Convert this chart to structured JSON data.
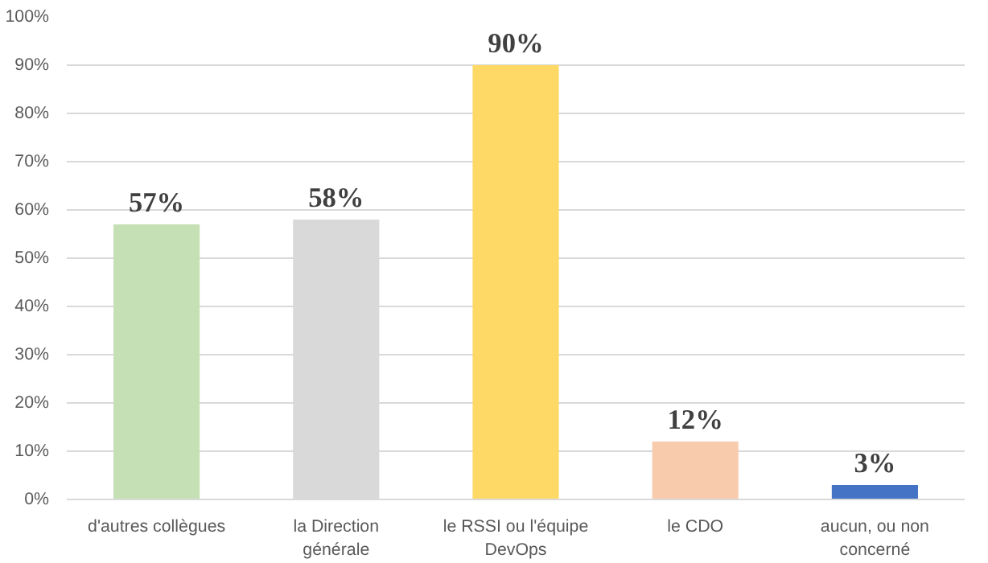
{
  "chart_data": {
    "type": "bar",
    "categories": [
      "d'autres collègues",
      "la Direction générale",
      "le RSSI ou l'équipe DevOps",
      "le CDO",
      "aucun, ou non concerné"
    ],
    "values": [
      57,
      58,
      90,
      12,
      3
    ],
    "colors": [
      "#c5e0b4",
      "#d9d9d9",
      "#ffd966",
      "#f8cbad",
      "#4472c4"
    ],
    "value_labels": [
      "57%",
      "58%",
      "90%",
      "12%",
      "3%"
    ],
    "ylim": [
      0,
      100
    ],
    "yticks": [
      {
        "value": 0,
        "label": "0%"
      },
      {
        "value": 10,
        "label": "10%"
      },
      {
        "value": 20,
        "label": "20%"
      },
      {
        "value": 30,
        "label": "30%"
      },
      {
        "value": 40,
        "label": "40%"
      },
      {
        "value": 50,
        "label": "50%"
      },
      {
        "value": 60,
        "label": "60%"
      },
      {
        "value": 70,
        "label": "70%"
      },
      {
        "value": 80,
        "label": "80%"
      },
      {
        "value": 90,
        "label": "90%"
      },
      {
        "value": 100,
        "label": "100%"
      }
    ],
    "grid": "y"
  }
}
